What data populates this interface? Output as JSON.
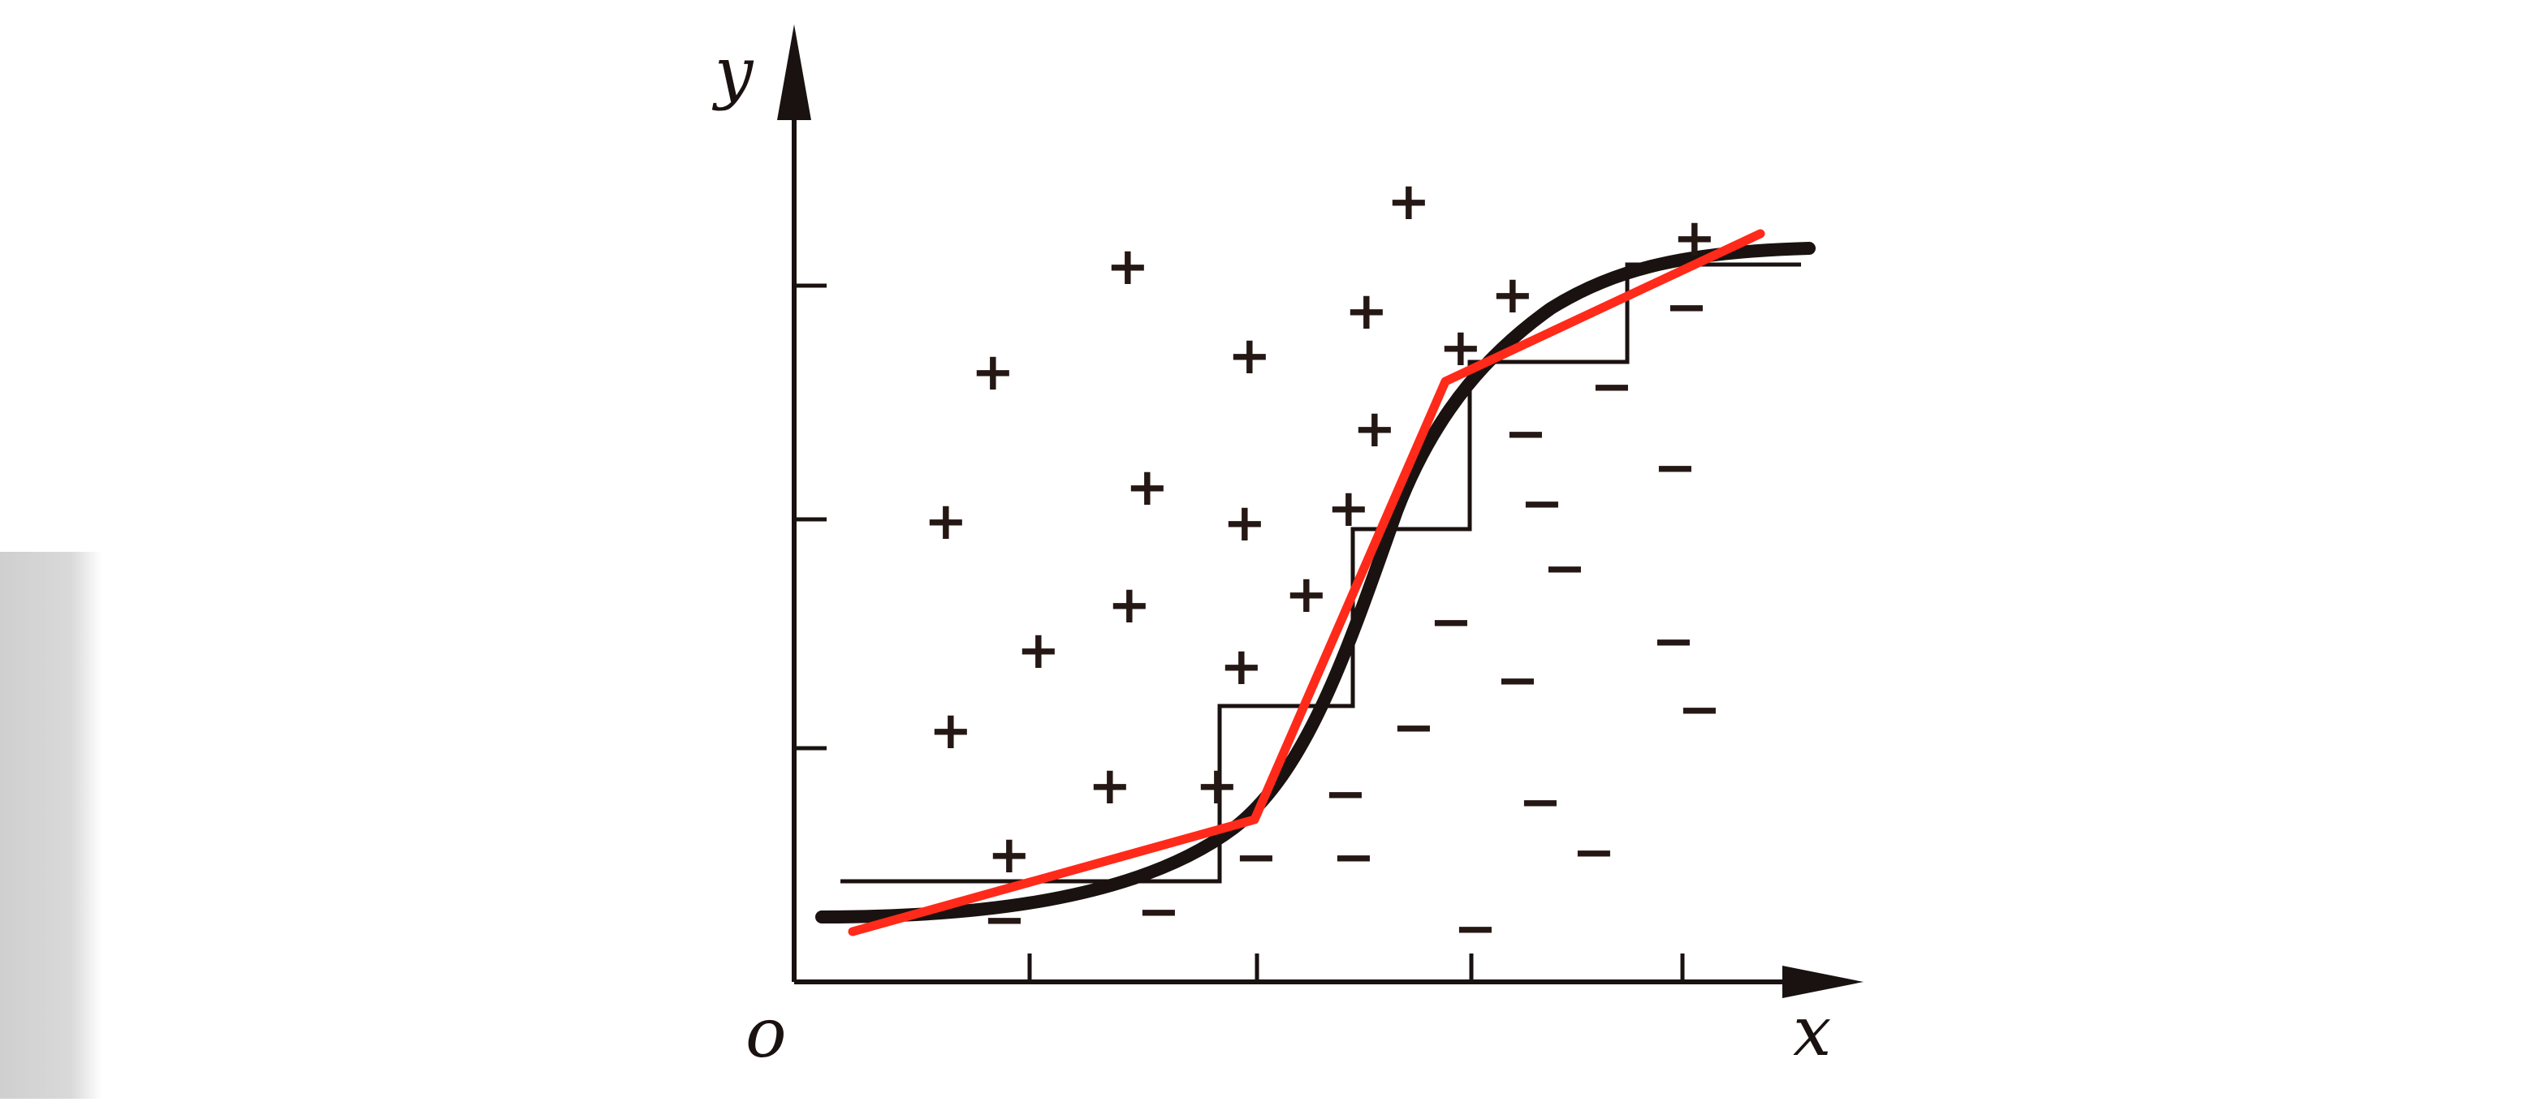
{
  "diagram": {
    "axes": {
      "origin_label": "o",
      "x_label": "x",
      "y_label": "y"
    },
    "samples": {
      "positive_symbol": "+",
      "negative_symbol": "−"
    },
    "colors": {
      "ink": "#1a1210",
      "approximation": "#ff2a1a"
    }
  }
}
